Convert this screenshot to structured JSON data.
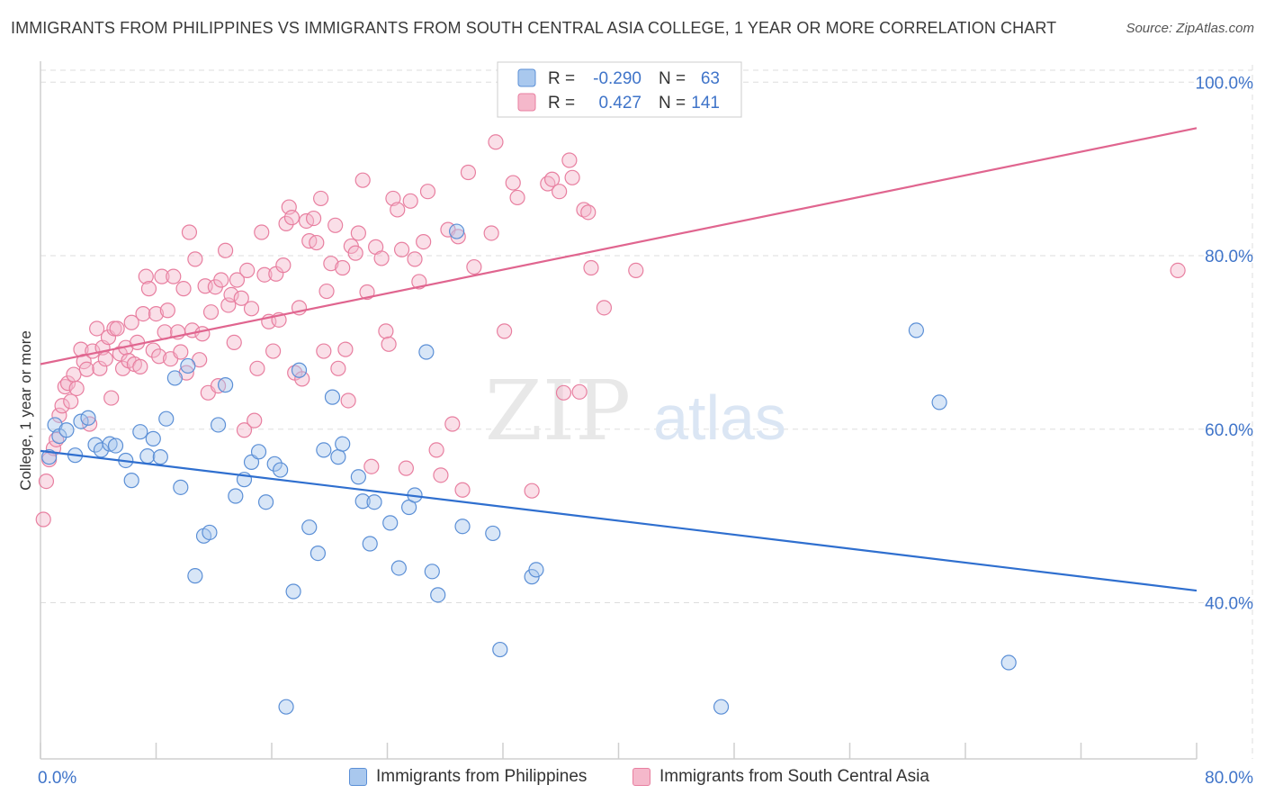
{
  "header": {
    "title": "IMMIGRANTS FROM PHILIPPINES VS IMMIGRANTS FROM SOUTH CENTRAL ASIA COLLEGE, 1 YEAR OR MORE CORRELATION CHART",
    "source": "Source: ZipAtlas.com"
  },
  "watermark": {
    "zip": "ZIP",
    "atlas": "atlas"
  },
  "legend": {
    "rows": [
      {
        "r_label": "R =",
        "r_value": "-0.290",
        "n_label": "N =",
        "n_value": "63"
      },
      {
        "r_label": "R =",
        "r_value": "0.427",
        "n_label": "N =",
        "n_value": "141"
      }
    ]
  },
  "colors": {
    "blue_fill": "#a9c8ee",
    "blue_stroke": "#5b8fd6",
    "blue_line": "#2f6fcf",
    "pink_fill": "#f5b8cb",
    "pink_stroke": "#e87fa0",
    "pink_line": "#e0658f",
    "axis_text": "#3f74c9",
    "grid": "#dddddd"
  },
  "chart_data": {
    "type": "scatter",
    "title": "IMMIGRANTS FROM PHILIPPINES VS IMMIGRANTS FROM SOUTH CENTRAL ASIA COLLEGE, 1 YEAR OR MORE CORRELATION CHART",
    "xlabel": "",
    "ylabel": "College, 1 year or more",
    "xlim": [
      0,
      80
    ],
    "ylim": [
      22,
      102
    ],
    "x_tick_labels": [
      "0.0%",
      "80.0%"
    ],
    "y_tick_labels": [
      "40.0%",
      "60.0%",
      "80.0%",
      "100.0%"
    ],
    "y_ticks": [
      40,
      60,
      80,
      100
    ],
    "grid": true,
    "legend_position": "top-center",
    "series": [
      {
        "name": "Immigrants from Philippines",
        "color": "#5b8fd6",
        "r": -0.29,
        "n": 63,
        "trend": {
          "x": [
            0,
            80
          ],
          "y": [
            57.5,
            41.4
          ]
        },
        "points": [
          [
            0.6,
            56.8
          ],
          [
            1.0,
            60.5
          ],
          [
            1.3,
            59.2
          ],
          [
            1.8,
            59.9
          ],
          [
            2.4,
            57.0
          ],
          [
            2.8,
            60.9
          ],
          [
            3.3,
            61.3
          ],
          [
            3.8,
            58.2
          ],
          [
            4.2,
            57.6
          ],
          [
            4.8,
            58.3
          ],
          [
            5.2,
            58.1
          ],
          [
            5.9,
            56.4
          ],
          [
            6.3,
            54.1
          ],
          [
            6.9,
            59.7
          ],
          [
            7.4,
            56.9
          ],
          [
            7.8,
            58.9
          ],
          [
            8.3,
            56.8
          ],
          [
            8.7,
            61.2
          ],
          [
            9.3,
            65.9
          ],
          [
            9.7,
            53.3
          ],
          [
            10.2,
            67.3
          ],
          [
            10.7,
            43.1
          ],
          [
            11.3,
            47.7
          ],
          [
            11.7,
            48.1
          ],
          [
            12.3,
            60.5
          ],
          [
            12.8,
            65.1
          ],
          [
            13.5,
            52.3
          ],
          [
            14.1,
            54.2
          ],
          [
            14.6,
            56.2
          ],
          [
            15.1,
            57.4
          ],
          [
            15.6,
            51.6
          ],
          [
            16.2,
            56.0
          ],
          [
            16.6,
            55.3
          ],
          [
            17.0,
            28.0
          ],
          [
            17.5,
            41.3
          ],
          [
            17.9,
            66.8
          ],
          [
            18.6,
            48.7
          ],
          [
            19.2,
            45.7
          ],
          [
            19.6,
            57.6
          ],
          [
            20.2,
            63.7
          ],
          [
            20.6,
            56.8
          ],
          [
            20.9,
            58.3
          ],
          [
            22.0,
            54.5
          ],
          [
            22.3,
            51.7
          ],
          [
            22.8,
            46.8
          ],
          [
            23.1,
            51.6
          ],
          [
            24.2,
            49.2
          ],
          [
            24.8,
            44.0
          ],
          [
            25.5,
            51.0
          ],
          [
            25.9,
            52.4
          ],
          [
            26.7,
            68.9
          ],
          [
            27.1,
            43.6
          ],
          [
            27.5,
            40.9
          ],
          [
            28.8,
            82.8
          ],
          [
            29.2,
            48.8
          ],
          [
            31.3,
            48.0
          ],
          [
            31.8,
            34.6
          ],
          [
            34.0,
            43.0
          ],
          [
            34.3,
            43.8
          ],
          [
            60.6,
            71.4
          ],
          [
            62.2,
            63.1
          ],
          [
            67.0,
            33.1
          ],
          [
            47.1,
            28.0
          ]
        ]
      },
      {
        "name": "Immigrants from South Central Asia",
        "color": "#e87fa0",
        "r": 0.427,
        "n": 141,
        "trend": {
          "x": [
            0,
            80
          ],
          "y": [
            67.5,
            94.7
          ]
        },
        "points": [
          [
            0.2,
            49.6
          ],
          [
            0.4,
            54.0
          ],
          [
            0.6,
            56.5
          ],
          [
            0.9,
            57.8
          ],
          [
            1.1,
            58.8
          ],
          [
            1.3,
            61.6
          ],
          [
            1.5,
            62.7
          ],
          [
            1.7,
            64.9
          ],
          [
            1.9,
            65.3
          ],
          [
            2.1,
            63.2
          ],
          [
            2.3,
            66.3
          ],
          [
            2.5,
            64.7
          ],
          [
            2.8,
            69.2
          ],
          [
            3.0,
            67.8
          ],
          [
            3.2,
            66.9
          ],
          [
            3.4,
            60.6
          ],
          [
            3.6,
            69.0
          ],
          [
            3.9,
            71.6
          ],
          [
            4.1,
            67.0
          ],
          [
            4.3,
            69.4
          ],
          [
            4.5,
            68.1
          ],
          [
            4.7,
            70.6
          ],
          [
            4.9,
            63.6
          ],
          [
            5.1,
            71.6
          ],
          [
            5.3,
            71.6
          ],
          [
            5.5,
            68.7
          ],
          [
            5.7,
            67.0
          ],
          [
            5.9,
            69.4
          ],
          [
            6.1,
            67.9
          ],
          [
            6.3,
            72.3
          ],
          [
            6.5,
            67.5
          ],
          [
            6.7,
            70.0
          ],
          [
            6.9,
            67.2
          ],
          [
            7.1,
            73.3
          ],
          [
            7.3,
            77.6
          ],
          [
            7.5,
            76.2
          ],
          [
            7.8,
            69.1
          ],
          [
            8.0,
            73.3
          ],
          [
            8.2,
            68.4
          ],
          [
            8.4,
            77.6
          ],
          [
            8.6,
            71.2
          ],
          [
            8.8,
            73.7
          ],
          [
            9.0,
            68.1
          ],
          [
            9.2,
            77.6
          ],
          [
            9.5,
            71.2
          ],
          [
            9.7,
            68.9
          ],
          [
            9.9,
            76.2
          ],
          [
            10.1,
            66.5
          ],
          [
            10.3,
            82.7
          ],
          [
            10.5,
            71.4
          ],
          [
            10.7,
            79.6
          ],
          [
            11.0,
            68.0
          ],
          [
            11.2,
            71.0
          ],
          [
            11.4,
            76.5
          ],
          [
            11.6,
            64.2
          ],
          [
            11.8,
            73.5
          ],
          [
            12.1,
            76.4
          ],
          [
            12.3,
            65.0
          ],
          [
            12.5,
            77.2
          ],
          [
            12.8,
            80.6
          ],
          [
            13.0,
            74.3
          ],
          [
            13.2,
            75.5
          ],
          [
            13.4,
            70.0
          ],
          [
            13.6,
            77.2
          ],
          [
            13.9,
            75.1
          ],
          [
            14.1,
            59.9
          ],
          [
            14.3,
            78.3
          ],
          [
            14.6,
            73.9
          ],
          [
            14.8,
            61.0
          ],
          [
            15.0,
            67.0
          ],
          [
            15.3,
            82.7
          ],
          [
            15.5,
            77.8
          ],
          [
            15.8,
            72.4
          ],
          [
            16.1,
            69.0
          ],
          [
            16.3,
            77.9
          ],
          [
            16.5,
            72.6
          ],
          [
            16.8,
            78.9
          ],
          [
            17.0,
            83.7
          ],
          [
            17.2,
            85.6
          ],
          [
            17.4,
            84.4
          ],
          [
            17.6,
            66.5
          ],
          [
            17.9,
            74.0
          ],
          [
            18.1,
            65.8
          ],
          [
            18.4,
            84.0
          ],
          [
            18.6,
            81.7
          ],
          [
            18.9,
            84.3
          ],
          [
            19.1,
            81.5
          ],
          [
            19.4,
            86.6
          ],
          [
            19.6,
            69.0
          ],
          [
            19.8,
            75.9
          ],
          [
            20.1,
            79.1
          ],
          [
            20.4,
            83.5
          ],
          [
            20.6,
            67.0
          ],
          [
            20.9,
            78.6
          ],
          [
            21.1,
            69.2
          ],
          [
            21.3,
            63.3
          ],
          [
            21.5,
            81.1
          ],
          [
            21.8,
            80.3
          ],
          [
            22.0,
            82.6
          ],
          [
            22.3,
            88.7
          ],
          [
            22.6,
            75.8
          ],
          [
            22.9,
            55.7
          ],
          [
            23.2,
            81.0
          ],
          [
            23.6,
            79.7
          ],
          [
            23.9,
            71.3
          ],
          [
            24.1,
            69.8
          ],
          [
            24.4,
            86.6
          ],
          [
            24.7,
            85.3
          ],
          [
            25.0,
            80.7
          ],
          [
            25.3,
            55.5
          ],
          [
            25.6,
            86.3
          ],
          [
            25.9,
            79.6
          ],
          [
            26.2,
            77.0
          ],
          [
            26.5,
            81.6
          ],
          [
            26.8,
            87.4
          ],
          [
            27.4,
            57.6
          ],
          [
            27.7,
            54.7
          ],
          [
            28.2,
            83.0
          ],
          [
            28.5,
            60.6
          ],
          [
            28.9,
            82.2
          ],
          [
            29.2,
            53.0
          ],
          [
            29.6,
            89.6
          ],
          [
            30.0,
            78.7
          ],
          [
            31.2,
            82.6
          ],
          [
            31.5,
            93.1
          ],
          [
            32.1,
            71.3
          ],
          [
            32.7,
            88.4
          ],
          [
            33.0,
            86.7
          ],
          [
            34.0,
            52.9
          ],
          [
            35.1,
            88.3
          ],
          [
            35.4,
            88.8
          ],
          [
            35.9,
            87.4
          ],
          [
            36.2,
            64.2
          ],
          [
            36.6,
            91.0
          ],
          [
            36.8,
            89.0
          ],
          [
            37.3,
            64.3
          ],
          [
            37.6,
            85.3
          ],
          [
            37.9,
            85.0
          ],
          [
            38.1,
            78.6
          ],
          [
            39.0,
            74.0
          ],
          [
            41.2,
            78.3
          ],
          [
            78.7,
            78.3
          ]
        ]
      }
    ]
  }
}
